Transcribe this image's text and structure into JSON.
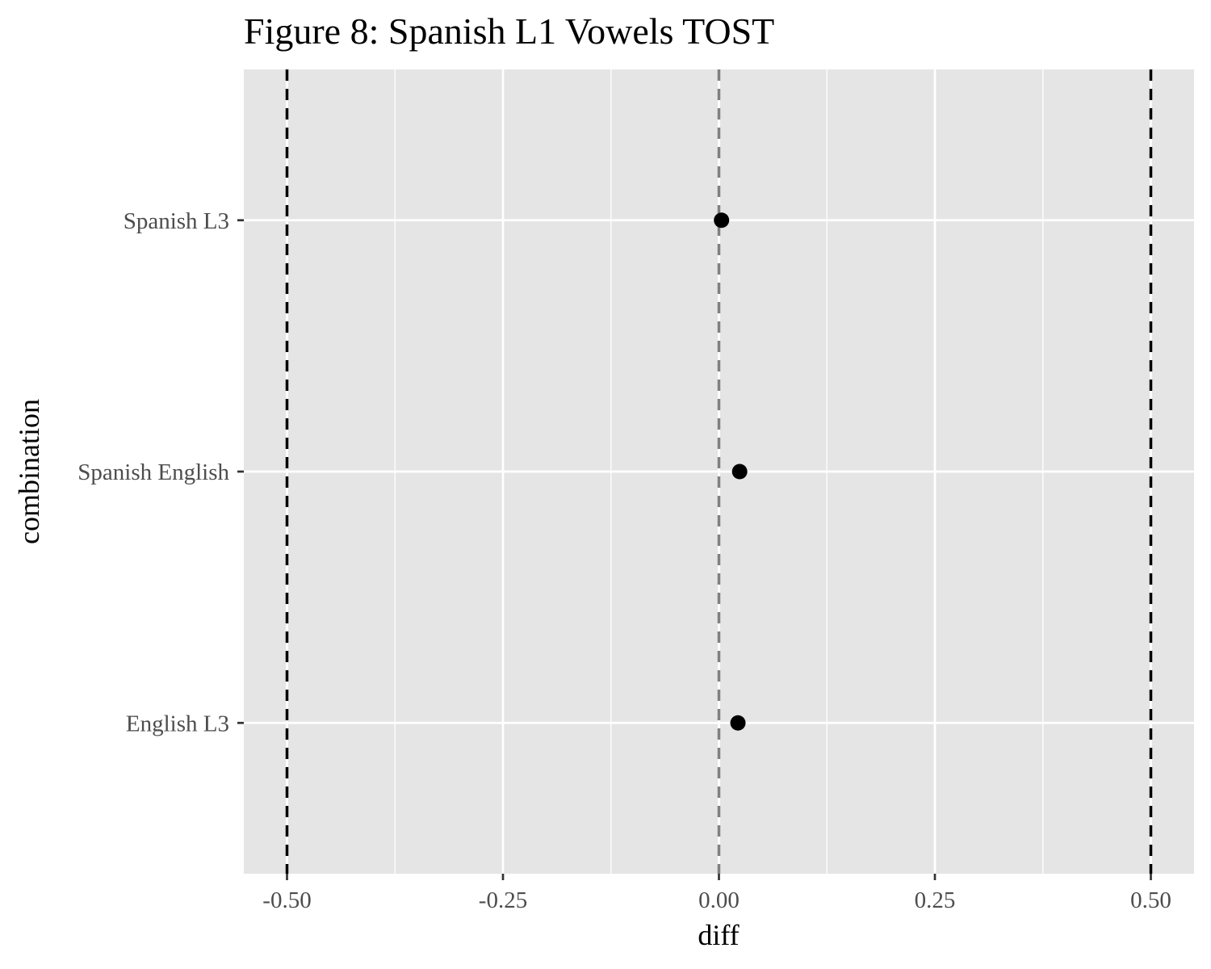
{
  "chart_data": {
    "type": "scatter",
    "title": "Figure 8: Spanish L1 Vowels TOST",
    "xlabel": "diff",
    "ylabel": "combination",
    "xlim": [
      -0.55,
      0.55
    ],
    "x_ticks": [
      -0.5,
      -0.25,
      0.0,
      0.25,
      0.5
    ],
    "x_tick_labels": [
      "-0.50",
      "-0.25",
      "0.00",
      "0.25",
      "0.50"
    ],
    "categories": [
      "Spanish L3",
      "Spanish English",
      "English L3"
    ],
    "points": [
      {
        "category": "Spanish L3",
        "x": 0.003
      },
      {
        "category": "Spanish English",
        "x": 0.024
      },
      {
        "category": "English L3",
        "x": 0.022
      }
    ],
    "equivalence_bounds": [
      -0.5,
      0.5
    ],
    "reference_line": 0.0,
    "grid": true,
    "legend": "none",
    "colors": {
      "panel_background": "#e5e5e5",
      "grid": "#ffffff",
      "points": "#000000",
      "bounds_line": "#000000",
      "reference_line": "#808080",
      "tick_text": "#4d4d4d"
    }
  }
}
